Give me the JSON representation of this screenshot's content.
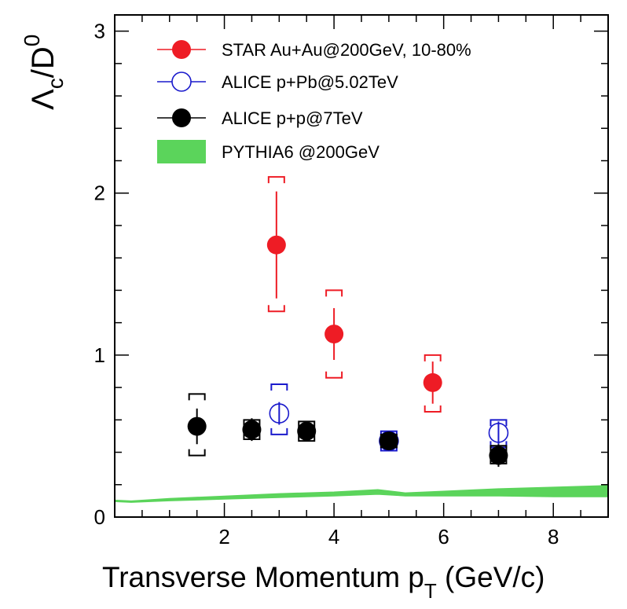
{
  "chart_data": {
    "type": "scatter",
    "xlabel": "Transverse Momentum p",
    "xlabel_sub": "T",
    "xlabel_suffix": " (GeV/c)",
    "ylabel_main": "Λ",
    "ylabel_sub": "c",
    "ylabel_mid": "/D",
    "ylabel_sup": "0",
    "xlim": [
      0,
      9
    ],
    "ylim": [
      0,
      3.1
    ],
    "xticks": [
      2,
      4,
      6,
      8
    ],
    "xtick_labels": [
      "2",
      "4",
      "6",
      "8"
    ],
    "yticks": [
      0,
      1,
      2,
      3
    ],
    "ytick_labels": [
      "0",
      "1",
      "2",
      "3"
    ],
    "grid": false,
    "legend_position": "top",
    "series": [
      {
        "name": "STAR Au+Au@200GeV, 10-80%",
        "color": "#ee1c25",
        "marker": "filled-circle",
        "x": [
          2.95,
          4.0,
          5.8
        ],
        "y": [
          1.68,
          1.13,
          0.83
        ],
        "stat_err": [
          0.33,
          0.16,
          0.13
        ],
        "sys_low": [
          1.27,
          0.86,
          0.65
        ],
        "sys_high": [
          2.1,
          1.4,
          1.0
        ]
      },
      {
        "name": "ALICE p+Pb@5.02TeV",
        "color": "#1a1acc",
        "marker": "open-circle",
        "x": [
          3.0,
          5.0,
          7.0
        ],
        "y": [
          0.64,
          0.47,
          0.52
        ],
        "stat_err": [
          0.07,
          0.05,
          0.07
        ],
        "sys_low": [
          0.51,
          0.41,
          0.43
        ],
        "sys_high": [
          0.82,
          0.53,
          0.6
        ]
      },
      {
        "name": "ALICE p+p@7TeV",
        "color": "#000000",
        "marker": "filled-circle",
        "x": [
          1.5,
          2.5,
          3.5,
          5.0,
          7.0
        ],
        "y": [
          0.56,
          0.54,
          0.53,
          0.47,
          0.38
        ],
        "stat_err": [
          0.11,
          0.07,
          0.05,
          0.04,
          0.07
        ],
        "sys_low": [
          0.38,
          0.48,
          0.47,
          0.43,
          0.33
        ],
        "sys_high": [
          0.76,
          0.6,
          0.59,
          0.51,
          0.44
        ]
      }
    ],
    "band": {
      "name": "PYTHIA6 @200GeV",
      "color": "#5bd45b",
      "x": [
        0.0,
        0.3,
        1.0,
        2.0,
        3.0,
        4.0,
        4.8,
        5.3,
        6.0,
        7.0,
        8.0,
        9.0
      ],
      "y_low": [
        0.095,
        0.09,
        0.1,
        0.11,
        0.12,
        0.13,
        0.14,
        0.13,
        0.13,
        0.13,
        0.125,
        0.125
      ],
      "y_high": [
        0.105,
        0.1,
        0.115,
        0.13,
        0.145,
        0.155,
        0.17,
        0.15,
        0.16,
        0.175,
        0.185,
        0.195
      ]
    }
  }
}
